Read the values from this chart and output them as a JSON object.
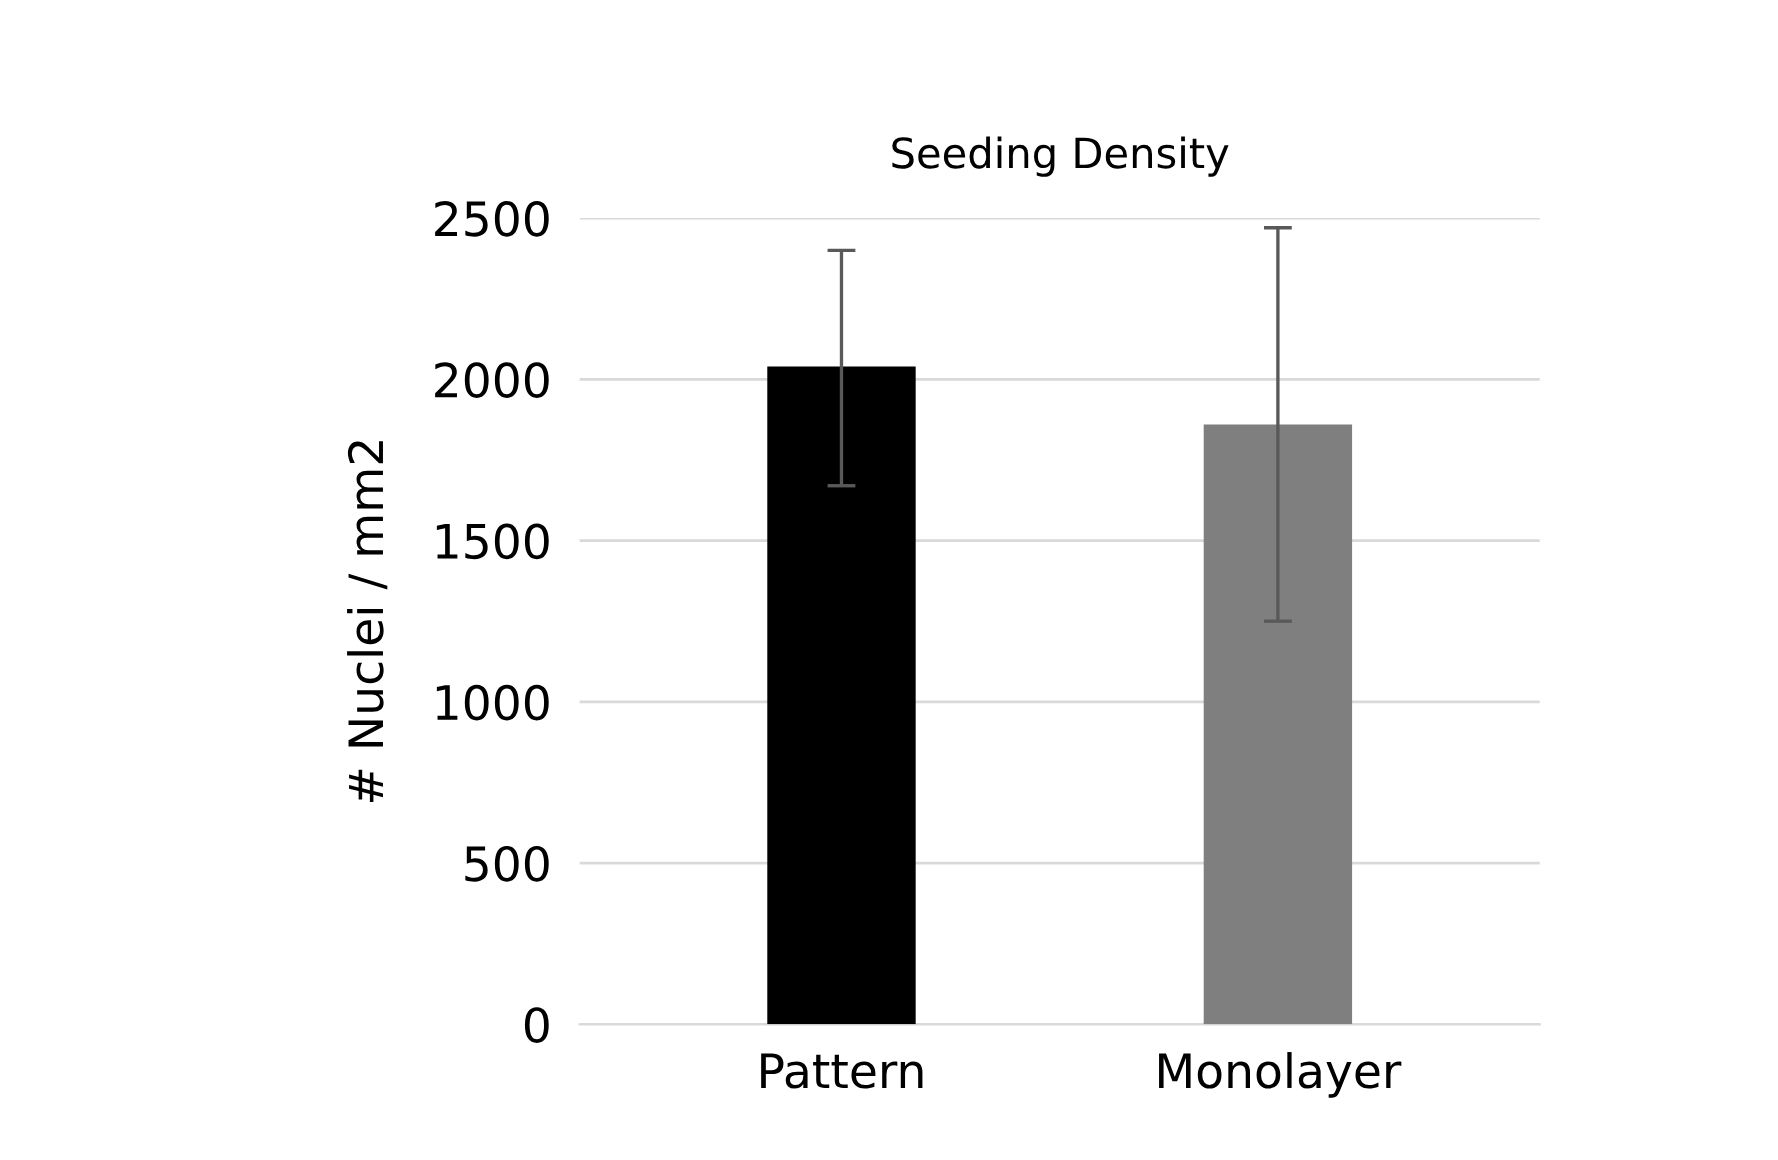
{
  "chart_data": {
    "type": "bar",
    "title": "Seeding Density",
    "ylabel": "# Nuclei / mm2",
    "categories": [
      "Pattern",
      "Monolayer"
    ],
    "values": [
      2040,
      1860
    ],
    "colors": [
      "#000000",
      "#7f7f7f"
    ],
    "errors": [
      [
        1670,
        2400
      ],
      [
        1250,
        2470
      ]
    ],
    "ylim": [
      0,
      2500
    ],
    "yticks": [
      0,
      500,
      1000,
      1500,
      2000,
      2500
    ],
    "grid": "y"
  }
}
